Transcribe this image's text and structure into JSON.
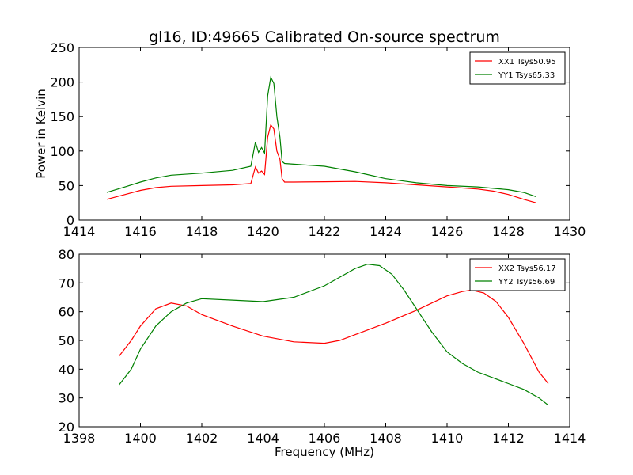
{
  "chart_data": [
    {
      "type": "line",
      "title": "gl16, ID:49665 Calibrated On-source spectrum",
      "xlabel": "",
      "ylabel": "Power in Kelvin",
      "xlim": [
        1414,
        1430
      ],
      "ylim": [
        0,
        250
      ],
      "xticks": [
        "1414",
        "1416",
        "1418",
        "1420",
        "1422",
        "1424",
        "1426",
        "1428",
        "1430"
      ],
      "yticks": [
        "0",
        "50",
        "100",
        "150",
        "200",
        "250"
      ],
      "grid": false,
      "legend_position": "top-right",
      "series": [
        {
          "name": "XX1 Tsys50.95",
          "color": "#ff0000",
          "x": [
            1414.9,
            1415.5,
            1416.0,
            1416.5,
            1417.0,
            1418.0,
            1419.0,
            1419.6,
            1419.75,
            1419.85,
            1419.95,
            1420.05,
            1420.15,
            1420.25,
            1420.35,
            1420.45,
            1420.55,
            1420.62,
            1420.7,
            1421.0,
            1422.0,
            1423.0,
            1424.0,
            1425.0,
            1426.0,
            1427.0,
            1427.5,
            1428.0,
            1428.5,
            1428.9
          ],
          "y": [
            30,
            37,
            43,
            47,
            49,
            50,
            51,
            53,
            77,
            68,
            71,
            66,
            120,
            138,
            132,
            100,
            88,
            60,
            55,
            55,
            55.5,
            56,
            54,
            51,
            48,
            45,
            42,
            37,
            30,
            25
          ]
        },
        {
          "name": "YY1 Tsys65.33",
          "color": "#008000",
          "x": [
            1414.9,
            1415.5,
            1416.0,
            1416.5,
            1417.0,
            1418.0,
            1419.0,
            1419.6,
            1419.75,
            1419.85,
            1419.95,
            1420.05,
            1420.15,
            1420.25,
            1420.35,
            1420.45,
            1420.55,
            1420.62,
            1420.7,
            1421.0,
            1422.0,
            1423.0,
            1424.0,
            1425.0,
            1426.0,
            1427.0,
            1427.5,
            1428.0,
            1428.5,
            1428.9
          ],
          "y": [
            40,
            48,
            55,
            61,
            65,
            68,
            72,
            78,
            113,
            98,
            105,
            97,
            180,
            207,
            198,
            150,
            120,
            85,
            82,
            81,
            78,
            70,
            60,
            54,
            50,
            48,
            46,
            44,
            40,
            34
          ]
        }
      ]
    },
    {
      "type": "line",
      "title": "",
      "xlabel": "Frequency (MHz)",
      "ylabel": "",
      "xlim": [
        1398,
        1414
      ],
      "ylim": [
        20,
        80
      ],
      "xticks": [
        "1398",
        "1400",
        "1402",
        "1404",
        "1406",
        "1408",
        "1410",
        "1412",
        "1414"
      ],
      "yticks": [
        "20",
        "30",
        "40",
        "50",
        "60",
        "70",
        "80"
      ],
      "grid": false,
      "legend_position": "top-right",
      "series": [
        {
          "name": "XX2 Tsys56.17",
          "color": "#ff0000",
          "x": [
            1399.3,
            1399.7,
            1400.0,
            1400.5,
            1401.0,
            1401.5,
            1402.0,
            1403.0,
            1404.0,
            1405.0,
            1406.0,
            1406.5,
            1407.0,
            1408.0,
            1409.0,
            1409.5,
            1410.0,
            1410.5,
            1410.8,
            1411.2,
            1411.6,
            1412.0,
            1412.5,
            1413.0,
            1413.3
          ],
          "y": [
            44.5,
            50,
            55,
            61,
            63,
            62,
            59,
            55,
            51.5,
            49.5,
            49,
            50,
            52,
            56,
            60.5,
            63,
            65.5,
            67,
            67.5,
            66.5,
            63.5,
            58,
            49,
            39,
            35
          ]
        },
        {
          "name": "YY2 Tsys56.69",
          "color": "#008000",
          "x": [
            1399.3,
            1399.7,
            1400.0,
            1400.5,
            1401.0,
            1401.5,
            1402.0,
            1403.0,
            1404.0,
            1405.0,
            1406.0,
            1406.5,
            1407.0,
            1407.4,
            1407.8,
            1408.2,
            1408.6,
            1409.0,
            1409.5,
            1410.0,
            1410.5,
            1411.0,
            1411.5,
            1412.0,
            1412.5,
            1413.0,
            1413.3
          ],
          "y": [
            34.5,
            40,
            47,
            55,
            60,
            63,
            64.5,
            64,
            63.5,
            65,
            69,
            72,
            75,
            76.5,
            76,
            73,
            67.5,
            61,
            53,
            46,
            42,
            39,
            37,
            35,
            33,
            30,
            27.5
          ]
        }
      ]
    }
  ]
}
